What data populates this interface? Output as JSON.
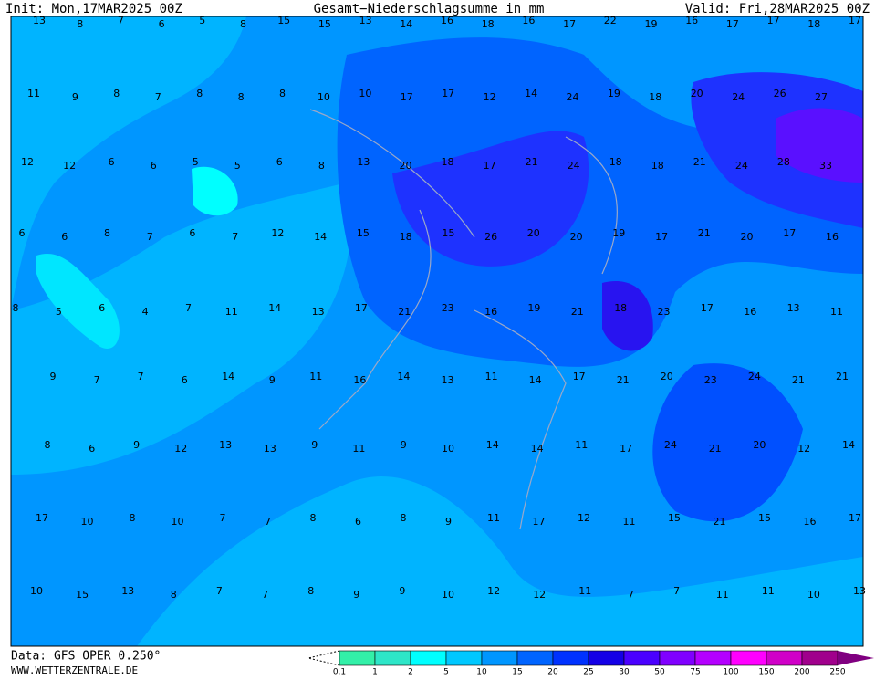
{
  "header": {
    "init": "Init: Mon,17MAR2025 00Z",
    "title": "Gesamt−Niederschlagsumme in mm",
    "valid": "Valid: Fri,28MAR2025 00Z"
  },
  "map": {
    "rows": [
      [
        13,
        8,
        7,
        6,
        5,
        8,
        15,
        15,
        13,
        14,
        16,
        18,
        16,
        17,
        22,
        19,
        16,
        17,
        17,
        18,
        17
      ],
      [
        11,
        9,
        8,
        7,
        8,
        8,
        8,
        10,
        10,
        17,
        17,
        12,
        14,
        24,
        19,
        18,
        20,
        24,
        26,
        27
      ],
      [
        12,
        12,
        6,
        6,
        5,
        5,
        6,
        8,
        13,
        20,
        18,
        17,
        21,
        24,
        18,
        18,
        21,
        24,
        28,
        33
      ],
      [
        6,
        6,
        8,
        7,
        6,
        7,
        12,
        14,
        15,
        18,
        15,
        26,
        20,
        20,
        19,
        17,
        21,
        20,
        17,
        16
      ],
      [
        8,
        5,
        6,
        4,
        7,
        11,
        14,
        13,
        17,
        21,
        23,
        16,
        19,
        21,
        18,
        23,
        17,
        16,
        13,
        11
      ],
      [
        9,
        7,
        7,
        6,
        14,
        9,
        11,
        16,
        14,
        13,
        11,
        14,
        17,
        21,
        20,
        23,
        24,
        21,
        21
      ],
      [
        8,
        6,
        9,
        12,
        13,
        13,
        9,
        11,
        9,
        10,
        14,
        14,
        11,
        17,
        24,
        21,
        20,
        12,
        14
      ],
      [
        17,
        10,
        8,
        10,
        7,
        7,
        8,
        6,
        8,
        9,
        11,
        17,
        12,
        11,
        15,
        21,
        15,
        16,
        17
      ],
      [
        10,
        15,
        13,
        8,
        7,
        7,
        8,
        9,
        9,
        10,
        12,
        12,
        11,
        7,
        7,
        11,
        11,
        10,
        13
      ]
    ]
  },
  "footer": {
    "data": "Data: GFS OPER 0.250°",
    "site": "WWW.WETTERZENTRALE.DE"
  },
  "legend": {
    "labels": [
      0.1,
      1,
      2,
      5,
      10,
      15,
      20,
      25,
      30,
      50,
      75,
      100,
      150,
      200,
      250
    ],
    "colors": [
      "#33f0a8",
      "#2ee6c8",
      "#00ffff",
      "#00c8ff",
      "#0096ff",
      "#0064ff",
      "#0032ff",
      "#1400e6",
      "#4a00ff",
      "#8000ff",
      "#b400ff",
      "#ff00ff",
      "#d000c8",
      "#a0008c",
      "#800080"
    ]
  }
}
